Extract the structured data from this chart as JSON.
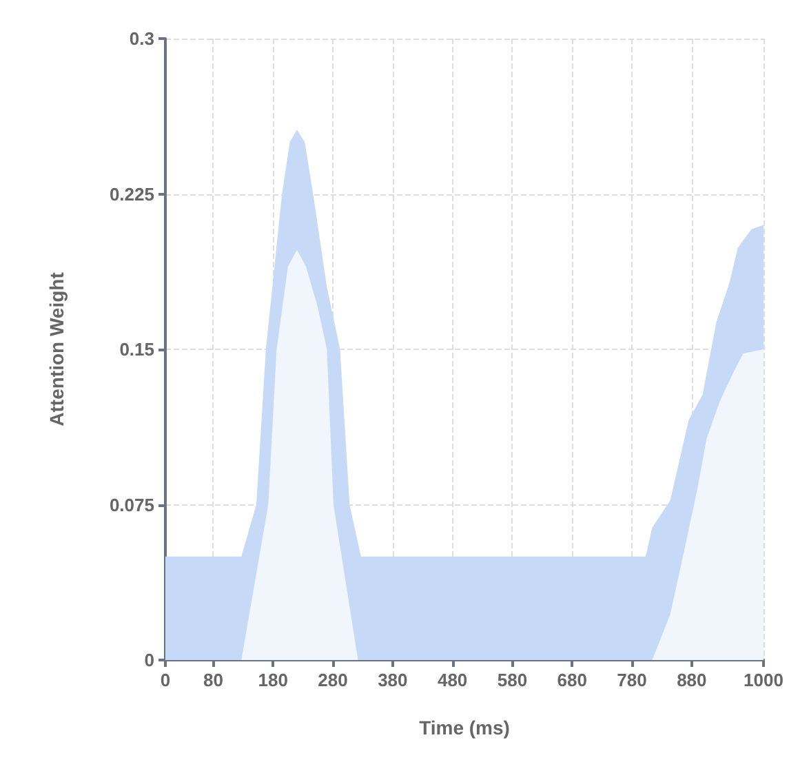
{
  "chart_data": {
    "type": "area",
    "xlabel": "Time (ms)",
    "ylabel": "Attention Weight",
    "xlim": [
      0,
      1000
    ],
    "xticks": [
      0,
      80,
      180,
      280,
      380,
      480,
      580,
      680,
      780,
      880,
      1000
    ],
    "ylim": [
      0,
      0.3
    ],
    "yticks": [
      0,
      0.075,
      0.15,
      0.225,
      0.3
    ],
    "grid": true,
    "series": [
      {
        "color": "#c6daf7",
        "x": [
          0,
          127,
          152,
          168,
          195,
          208,
          220,
          233,
          247,
          270,
          292,
          308,
          327,
          780,
          803,
          814,
          844,
          875,
          898,
          921,
          943,
          957,
          980,
          1000
        ],
        "values": [
          0.05,
          0.05,
          0.075,
          0.15,
          0.225,
          0.25,
          0.256,
          0.25,
          0.225,
          0.18,
          0.15,
          0.075,
          0.05,
          0.05,
          0.05,
          0.064,
          0.077,
          0.116,
          0.128,
          0.163,
          0.182,
          0.199,
          0.208,
          0.21
        ]
      },
      {
        "color": "#f1f6fd",
        "x": [
          0,
          127,
          172,
          186,
          205,
          220,
          235,
          255,
          270,
          281,
          322,
          814,
          844,
          866,
          889,
          905,
          927,
          950,
          966,
          1000
        ],
        "values": [
          0,
          0,
          0.075,
          0.15,
          0.19,
          0.198,
          0.19,
          0.17,
          0.15,
          0.075,
          0,
          0,
          0.022,
          0.051,
          0.082,
          0.107,
          0.125,
          0.139,
          0.148,
          0.15
        ]
      }
    ]
  }
}
